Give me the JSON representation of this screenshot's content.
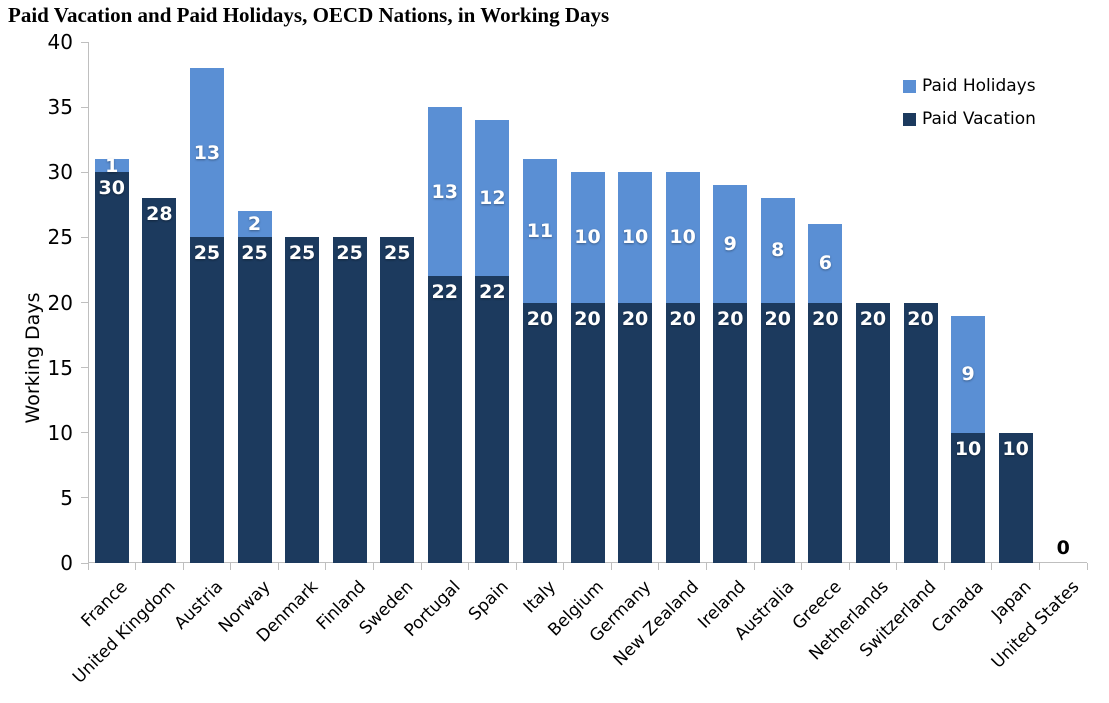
{
  "chart_data": {
    "type": "bar",
    "stacked": true,
    "title": "Paid Vacation and Paid Holidays, OECD Nations, in Working Days",
    "xlabel": "",
    "ylabel": "Working Days",
    "ylim": [
      0,
      40
    ],
    "ytick_step": 5,
    "grid": false,
    "legend_position": "top-right",
    "legend": [
      "Paid Holidays",
      "Paid Vacation"
    ],
    "categories": [
      "France",
      "United Kingdom",
      "Austria",
      "Norway",
      "Denmark",
      "Finland",
      "Sweden",
      "Portugal",
      "Spain",
      "Italy",
      "Belgium",
      "Germany",
      "New Zealand",
      "Ireland",
      "Australia",
      "Greece",
      "Netherlands",
      "Switzerland",
      "Canada",
      "Japan",
      "United States"
    ],
    "series": [
      {
        "name": "Paid Vacation",
        "color": "#1C3A5E",
        "values": [
          30,
          28,
          25,
          25,
          25,
          25,
          25,
          22,
          22,
          20,
          20,
          20,
          20,
          20,
          20,
          20,
          20,
          20,
          10,
          10,
          0
        ]
      },
      {
        "name": "Paid Holidays",
        "color": "#5A8FD4",
        "values": [
          1,
          0,
          13,
          2,
          0,
          0,
          0,
          13,
          12,
          11,
          10,
          10,
          10,
          9,
          8,
          6,
          0,
          0,
          9,
          0,
          0
        ]
      }
    ],
    "zero_value_label": "0",
    "colors": {
      "axis": "#BFBFBF",
      "bar_label": "#FFFFFF",
      "text": "#000000",
      "background": "#FFFFFF"
    }
  }
}
